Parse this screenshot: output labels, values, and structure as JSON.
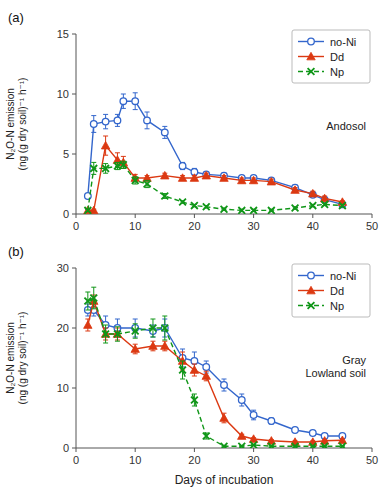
{
  "chart_data": [
    {
      "type": "line",
      "title": "(a)",
      "annotation": "Andosol",
      "ylabel": "N₂O-N emission\n(ng (g dry soil)⁻¹ h⁻¹)",
      "xlim": [
        0,
        50
      ],
      "xticks": [
        0,
        10,
        20,
        30,
        40,
        50
      ],
      "ylim": [
        0,
        15
      ],
      "yticks": [
        0,
        5,
        10,
        15
      ],
      "legend": "upper-right",
      "series": [
        {
          "name": "no-Ni",
          "marker": "open-circle",
          "line_style": "solid",
          "x": [
            2,
            3,
            5,
            7,
            8,
            10,
            12,
            15,
            18,
            20,
            22,
            25,
            28,
            30,
            33,
            37,
            40,
            42,
            45
          ],
          "values": [
            1.5,
            7.5,
            7.7,
            7.8,
            9.4,
            9.4,
            7.8,
            6.8,
            4.0,
            3.5,
            3.3,
            3.2,
            3.0,
            3.0,
            2.8,
            2.2,
            1.6,
            1.2,
            0.8
          ],
          "yerr": [
            0.2,
            0.7,
            0.6,
            0.5,
            0.6,
            0.7,
            0.7,
            0.5,
            0.3,
            0.3,
            0.2,
            0.2,
            0.2,
            0.2,
            0.2,
            0.2,
            0.2,
            0.2,
            0.1
          ]
        },
        {
          "name": "Dd",
          "marker": "triangle",
          "line_style": "solid",
          "x": [
            2,
            3,
            5,
            7,
            8,
            10,
            12,
            15,
            18,
            20,
            22,
            25,
            28,
            30,
            33,
            37,
            40,
            42,
            45
          ],
          "values": [
            0.3,
            0.3,
            5.7,
            4.5,
            4.3,
            3.0,
            3.0,
            3.2,
            3.0,
            3.0,
            3.2,
            3.0,
            2.8,
            2.8,
            2.7,
            2.0,
            1.7,
            1.3,
            1.0
          ],
          "yerr": [
            0.1,
            0.1,
            0.8,
            0.6,
            0.5,
            0.3,
            0.2,
            0.2,
            0.2,
            0.2,
            0.2,
            0.2,
            0.2,
            0.2,
            0.2,
            0.2,
            0.2,
            0.2,
            0.1
          ]
        },
        {
          "name": "Np",
          "marker": "x",
          "line_style": "dashed",
          "x": [
            2,
            3,
            5,
            7,
            8,
            10,
            12,
            15,
            18,
            20,
            22,
            25,
            28,
            30,
            33,
            37,
            40,
            42,
            45
          ],
          "values": [
            0.3,
            3.8,
            3.8,
            4.0,
            4.1,
            2.8,
            2.5,
            1.5,
            1.0,
            0.7,
            0.6,
            0.4,
            0.3,
            0.3,
            0.3,
            0.5,
            0.7,
            0.8,
            0.7
          ],
          "yerr": [
            0.1,
            0.5,
            0.4,
            0.3,
            0.3,
            0.3,
            0.3,
            0.2,
            0.1,
            0.1,
            0.1,
            0.1,
            0.1,
            0.1,
            0.1,
            0.1,
            0.1,
            0.1,
            0.1
          ]
        }
      ]
    },
    {
      "type": "line",
      "title": "(b)",
      "annotation": "Gray\nLowland soil",
      "xlabel": "Days of incubation",
      "ylabel": "N₂O-N emission\n(ng (g dry soil)⁻¹ h⁻¹)",
      "xlim": [
        0,
        50
      ],
      "xticks": [
        0,
        10,
        20,
        30,
        40,
        50
      ],
      "ylim": [
        0,
        30
      ],
      "yticks": [
        0,
        10,
        20,
        30
      ],
      "legend": "upper-right",
      "series": [
        {
          "name": "no-Ni",
          "marker": "open-circle",
          "line_style": "solid",
          "x": [
            2,
            3,
            5,
            7,
            10,
            13,
            15,
            18,
            20,
            22,
            25,
            28,
            30,
            33,
            37,
            40,
            42,
            45
          ],
          "values": [
            23.0,
            23.0,
            20.5,
            20.0,
            20.0,
            19.5,
            20.0,
            15.0,
            14.5,
            13.5,
            10.5,
            8.0,
            5.5,
            4.5,
            3.0,
            2.5,
            2.0,
            2.0
          ],
          "yerr": [
            1.0,
            1.0,
            1.5,
            1.5,
            1.5,
            1.0,
            1.5,
            1.5,
            1.5,
            1.0,
            1.0,
            1.0,
            0.8,
            0.5,
            0.3,
            0.3,
            0.3,
            0.3
          ]
        },
        {
          "name": "Dd",
          "marker": "triangle",
          "line_style": "solid",
          "x": [
            2,
            3,
            5,
            7,
            10,
            13,
            15,
            18,
            20,
            22,
            25,
            28,
            30,
            33,
            37,
            40,
            42,
            45
          ],
          "values": [
            20.5,
            24.5,
            19.0,
            19.0,
            16.5,
            17.0,
            17.0,
            14.5,
            13.0,
            12.0,
            5.0,
            2.0,
            1.5,
            1.2,
            1.0,
            1.0,
            1.2,
            1.3
          ],
          "yerr": [
            1.0,
            1.0,
            1.0,
            1.0,
            0.8,
            0.8,
            0.8,
            1.5,
            1.0,
            0.8,
            0.8,
            0.3,
            0.2,
            0.2,
            0.2,
            0.2,
            0.2,
            0.2
          ]
        },
        {
          "name": "Np",
          "marker": "x",
          "line_style": "dashed",
          "x": [
            2,
            3,
            5,
            7,
            10,
            13,
            15,
            18,
            20,
            22,
            25,
            28,
            30,
            33,
            37,
            40,
            42,
            45
          ],
          "values": [
            24.5,
            25.0,
            19.0,
            19.0,
            19.5,
            20.0,
            20.0,
            13.0,
            8.0,
            2.0,
            0.3,
            0.3,
            0.5,
            0.3,
            0.3,
            0.3,
            0.3,
            0.3
          ],
          "yerr": [
            1.5,
            1.8,
            1.5,
            1.2,
            1.2,
            1.5,
            2.0,
            1.5,
            1.0,
            0.5,
            0.1,
            0.1,
            0.1,
            0.1,
            0.1,
            0.1,
            0.1,
            0.1
          ]
        }
      ]
    }
  ]
}
